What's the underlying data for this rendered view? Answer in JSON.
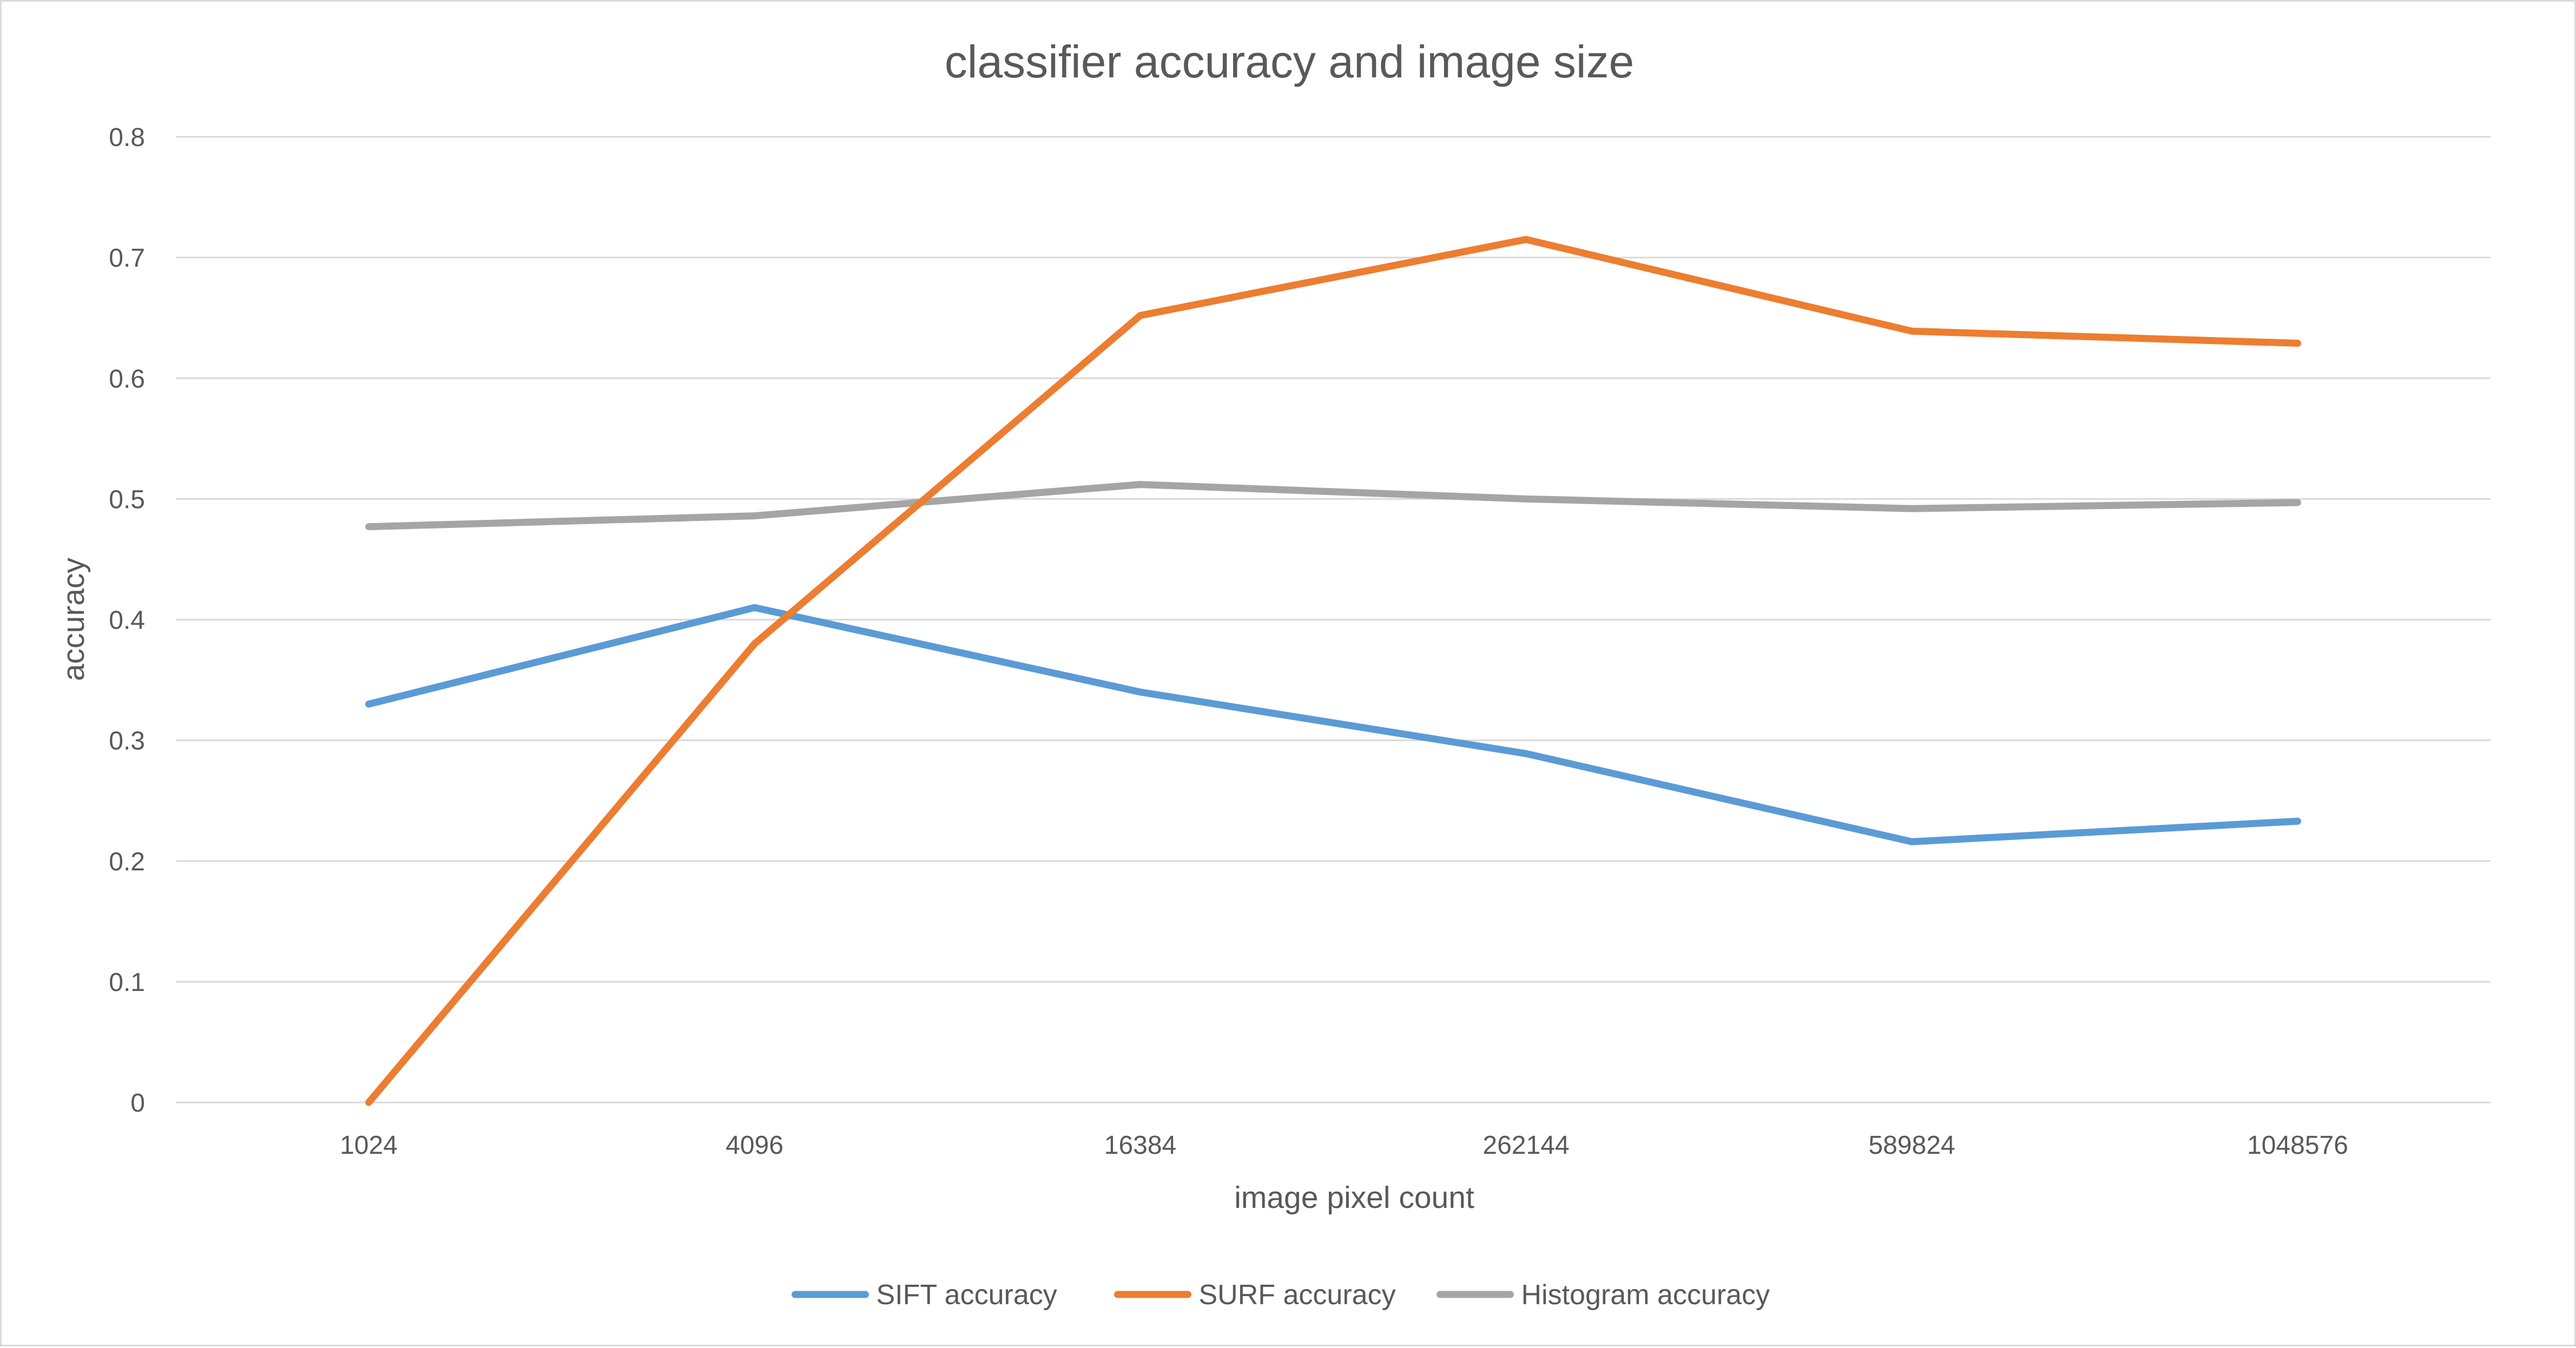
{
  "chart_data": {
    "type": "line",
    "title": "classifier accuracy and image size",
    "xlabel": "image pixel count",
    "ylabel": "accuracy",
    "categories": [
      "1024",
      "4096",
      "16384",
      "262144",
      "589824",
      "1048576"
    ],
    "ylim": [
      0,
      0.8
    ],
    "yticks": [
      "0",
      "0.1",
      "0.2",
      "0.3",
      "0.4",
      "0.5",
      "0.6",
      "0.7",
      "0.8"
    ],
    "grid": true,
    "legend_position": "bottom",
    "series": [
      {
        "name": "SIFT accuracy",
        "color": "#5b9bd5",
        "values": [
          0.33,
          0.41,
          0.34,
          0.289,
          0.216,
          0.233
        ]
      },
      {
        "name": "SURF accuracy",
        "color": "#ed7d31",
        "values": [
          0.0,
          0.38,
          0.652,
          0.715,
          0.639,
          0.629
        ]
      },
      {
        "name": "Histogram accuracy",
        "color": "#a5a5a5",
        "values": [
          0.477,
          0.486,
          0.512,
          0.5,
          0.492,
          0.497
        ]
      }
    ]
  }
}
